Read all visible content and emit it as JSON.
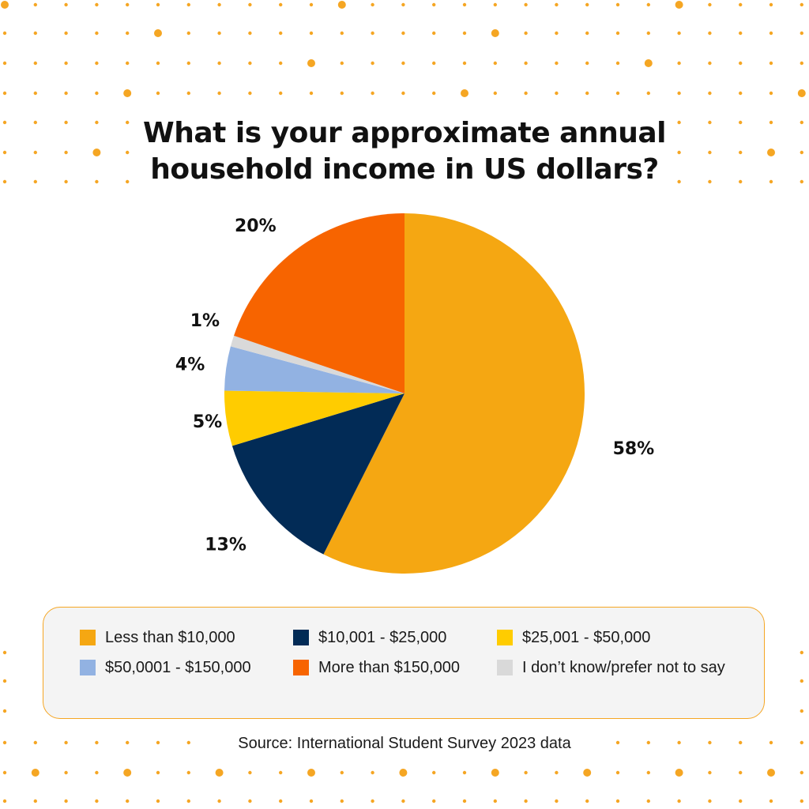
{
  "title_line1": "What is your approximate annual",
  "title_line2": "household income in US dollars?",
  "source": "Source: International Student Survey 2023 data",
  "colors": {
    "accent": "#f5a623",
    "dots": "#f5a623",
    "legend_border": "#f5a623",
    "legend_background": "#f4f4f4"
  },
  "chart_data": {
    "type": "pie",
    "title": "What is your approximate annual household income in US dollars?",
    "start": "12 o'clock",
    "direction": "clockwise",
    "legend_placement": "bottom",
    "slices": [
      {
        "label": "Less than $10,000",
        "value": 58,
        "display": "58%",
        "color": "#f5a712"
      },
      {
        "label": "$10,001 - $25,000",
        "value": 13,
        "display": "13%",
        "color": "#022b56"
      },
      {
        "label": "$25,001 - $50,000",
        "value": 5,
        "display": "5%",
        "color": "#ffcc00"
      },
      {
        "label": "$50,0001 - $150,000",
        "value": 4,
        "display": "4%",
        "color": "#92b2e2"
      },
      {
        "label": "I don’t know/prefer not to say",
        "value": 1,
        "display": "1%",
        "color": "#d9d9d9"
      },
      {
        "label": "More than $150,000",
        "value": 20,
        "display": "20%",
        "color": "#f76400"
      }
    ]
  },
  "legend_order": [
    "Less than $10,000",
    "$10,001 - $25,000",
    "$25,001 - $50,000",
    "$50,0001 - $150,000",
    "More than $150,000",
    "I don’t know/prefer not to say"
  ]
}
